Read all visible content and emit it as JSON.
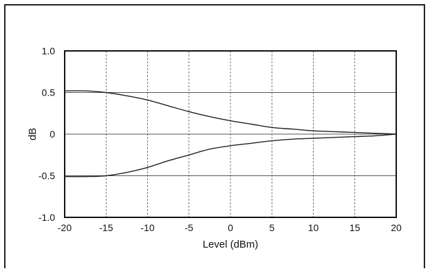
{
  "chart_data": {
    "type": "line",
    "title": "",
    "xlabel": "Level (dBm)",
    "ylabel": "dB",
    "xlim": [
      -20,
      20
    ],
    "ylim": [
      -1.0,
      1.0
    ],
    "x_ticks": [
      -20,
      -15,
      -10,
      -5,
      0,
      5,
      10,
      15,
      20
    ],
    "x_tick_labels": [
      "-20",
      "-15",
      "-10",
      "-5",
      "0",
      "5",
      "10",
      "15",
      "20"
    ],
    "y_ticks": [
      1.0,
      0.5,
      0,
      -0.5,
      -1.0
    ],
    "y_tick_labels": [
      "1.0",
      "0.5",
      "0",
      "-0.5",
      "-1.0"
    ],
    "grid": true,
    "legend": "none",
    "series": [
      {
        "x": [
          -20,
          -17.5,
          -15,
          -12.5,
          -10,
          -7.5,
          -5,
          -2.5,
          0,
          2.5,
          5,
          7.5,
          10,
          12.5,
          15,
          17.5,
          20
        ],
        "values": [
          0.52,
          0.52,
          0.5,
          0.46,
          0.41,
          0.34,
          0.27,
          0.21,
          0.16,
          0.12,
          0.08,
          0.06,
          0.04,
          0.03,
          0.02,
          0.01,
          0.0
        ]
      },
      {
        "x": [
          -20,
          -17.5,
          -15,
          -12.5,
          -10,
          -7.5,
          -5,
          -2.5,
          0,
          2.5,
          5,
          7.5,
          10,
          12.5,
          15,
          17.5,
          20
        ],
        "values": [
          -0.51,
          -0.51,
          -0.5,
          -0.46,
          -0.4,
          -0.32,
          -0.25,
          -0.18,
          -0.14,
          -0.11,
          -0.08,
          -0.06,
          -0.05,
          -0.04,
          -0.03,
          -0.02,
          0.0
        ]
      }
    ],
    "colors": {
      "line": "#222222",
      "grid": "#555555",
      "axis": "#111111"
    }
  }
}
